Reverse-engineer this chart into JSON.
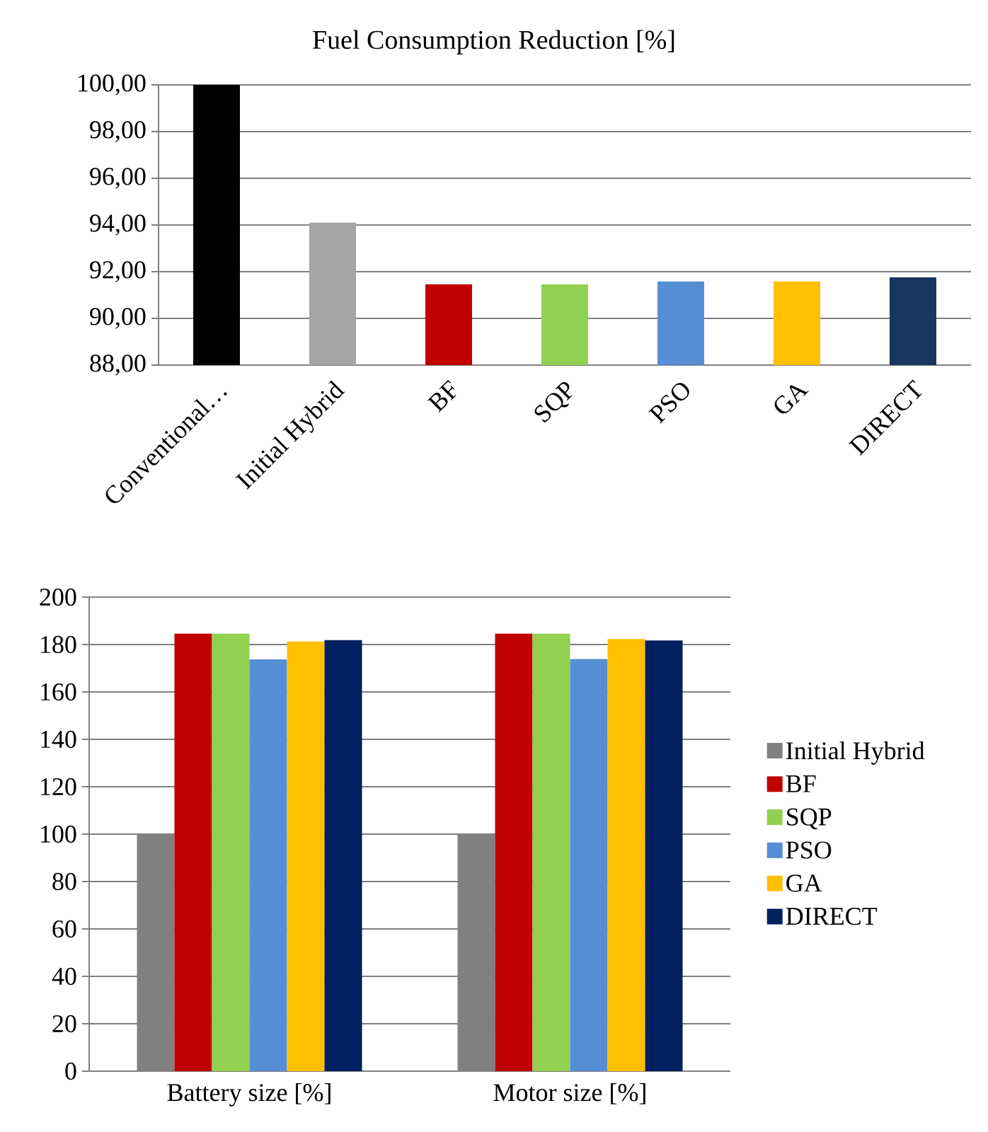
{
  "chart_data": [
    {
      "type": "bar",
      "title": "Fuel Consumption Reduction [%]",
      "categories": [
        "Conventional…",
        "Initial Hybrid",
        "BF",
        "SQP",
        "PSO",
        "GA",
        "DIRECT"
      ],
      "values": [
        100,
        94.1,
        91.46,
        91.46,
        91.58,
        91.58,
        91.76
      ],
      "colors": [
        "#000000",
        "#a5a5a5",
        "#c00000",
        "#92d050",
        "#558ed5",
        "#ffc000",
        "#17375e"
      ],
      "ylim": [
        88,
        100
      ],
      "yticks": [
        {
          "value": 88,
          "label": "88,00"
        },
        {
          "value": 90,
          "label": "90,00"
        },
        {
          "value": 92,
          "label": "92,00"
        },
        {
          "value": 94,
          "label": "94,00"
        },
        {
          "value": 96,
          "label": "96,00"
        },
        {
          "value": 98,
          "label": "98,00"
        },
        {
          "value": 100,
          "label": "100,00"
        }
      ],
      "grid": "y"
    },
    {
      "type": "bar",
      "categories": [
        "Battery size [%]",
        "Motor size [%]"
      ],
      "series": [
        {
          "name": "Initial Hybrid",
          "color": "#808080",
          "values": [
            100,
            100
          ]
        },
        {
          "name": "BF",
          "color": "#c00000",
          "values": [
            184.6,
            184.6
          ]
        },
        {
          "name": "SQP",
          "color": "#92d050",
          "values": [
            184.6,
            184.6
          ]
        },
        {
          "name": "PSO",
          "color": "#558ed5",
          "values": [
            173.7,
            173.9
          ]
        },
        {
          "name": "GA",
          "color": "#ffc000",
          "values": [
            181.3,
            182.3
          ]
        },
        {
          "name": "DIRECT",
          "color": "#002060",
          "values": [
            181.9,
            181.7
          ]
        }
      ],
      "ylim": [
        0,
        200
      ],
      "yticks": [
        0,
        20,
        40,
        60,
        80,
        100,
        120,
        140,
        160,
        180,
        200
      ],
      "grid": "y",
      "legend": "right"
    }
  ]
}
